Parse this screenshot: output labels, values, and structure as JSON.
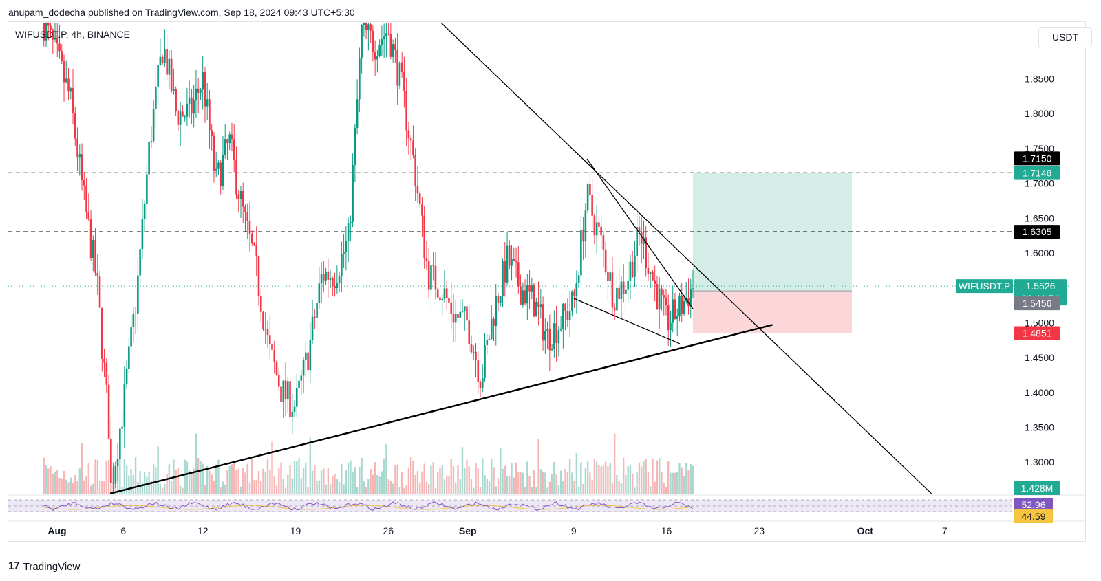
{
  "header": {
    "published_by": "anupam_dodecha published on TradingView.com, Sep 18, 2024 09:43 UTC+5:30"
  },
  "symbol": {
    "label": "WIFUSDT.P, 4h, BINANCE"
  },
  "currency_button": {
    "label": "USDT"
  },
  "footer": {
    "brand": "TradingView",
    "logo_glyph": "17"
  },
  "colors": {
    "up": "#089981",
    "down": "#f23645",
    "volume_up": "#a8d8cf",
    "volume_down": "#f7b6b6",
    "target_zone": "#d4ede6",
    "stop_zone": "#fbd7d9",
    "rsi_line": "#7e57c2",
    "rsi_ma": "#f5c542",
    "rsi_band": "#ede7f6",
    "last_price": "#22ab94",
    "level_black": "#000000"
  },
  "chart_data": {
    "type": "candlestick",
    "timeframe": "4h",
    "exchange": "BINANCE",
    "ylim": [
      1.255,
      1.9305
    ],
    "y_ticks": [
      "1.8500",
      "1.8000",
      "1.7500",
      "1.7000",
      "1.6500",
      "1.6000",
      "1.5000",
      "1.4500",
      "1.4000",
      "1.3500",
      "1.3000"
    ],
    "x_ticks": [
      "Aug",
      "6",
      "12",
      "19",
      "26",
      "Sep",
      "9",
      "16",
      "23",
      "Oct",
      "7"
    ],
    "horizontal_levels": [
      1.715,
      1.6305
    ],
    "price_labels": [
      {
        "text": "1.7150",
        "kind": "level",
        "color": "#000000"
      },
      {
        "text": "1.7148",
        "kind": "target",
        "color": "#22ab94"
      },
      {
        "text": "1.6305",
        "kind": "level",
        "color": "#000000"
      },
      {
        "text": "1.5526",
        "kind": "last",
        "color": "#22ab94"
      },
      {
        "text": "03:46:54",
        "kind": "countdown",
        "color": "#22ab94"
      },
      {
        "text": "1.5456",
        "kind": "entry",
        "color": "#787b86"
      },
      {
        "text": "1.4851",
        "kind": "stop",
        "color": "#f23645"
      }
    ],
    "last_price_tag": "WIFUSDT.P",
    "last_price": 1.5526,
    "volume_label": "1.428M",
    "rsi": {
      "value_label": "52.96",
      "ma_label": "44.59"
    },
    "position": {
      "entry": 1.5456,
      "target": 1.7148,
      "stop": 1.4851
    },
    "trendlines": [
      {
        "name": "ascending-support",
        "from": [
          "Aug 5",
          1.255
        ],
        "to": [
          "Sep 24",
          1.497
        ]
      },
      {
        "name": "descending-resistance",
        "from": [
          "Aug 30",
          1.93
        ],
        "to": [
          "Oct 6",
          1.255
        ]
      },
      {
        "name": "inner-upper",
        "from": [
          "Sep 10",
          1.735
        ],
        "to": [
          "Sep 18",
          1.52
        ]
      },
      {
        "name": "inner-lower",
        "from": [
          "Sep 9",
          1.535
        ],
        "to": [
          "Sep 17",
          1.47
        ]
      }
    ],
    "path_points": [
      [
        "Jul 31",
        1.93
      ],
      [
        "Aug 1",
        1.88
      ],
      [
        "Aug 2",
        1.82
      ],
      [
        "Aug 3",
        1.68
      ],
      [
        "Aug 4",
        1.56
      ],
      [
        "Aug 5",
        1.33
      ],
      [
        "Aug 5",
        1.255
      ],
      [
        "Aug 6",
        1.38
      ],
      [
        "Aug 7",
        1.54
      ],
      [
        "Aug 8",
        1.76
      ],
      [
        "Aug 9",
        1.9
      ],
      [
        "Aug 10",
        1.8
      ],
      [
        "Aug 11",
        1.8
      ],
      [
        "Aug 12",
        1.85
      ],
      [
        "Aug 13",
        1.7
      ],
      [
        "Aug 14",
        1.76
      ],
      [
        "Aug 15",
        1.66
      ],
      [
        "Aug 16",
        1.58
      ],
      [
        "Aug 17",
        1.46
      ],
      [
        "Aug 18",
        1.4
      ],
      [
        "Aug 19",
        1.38
      ],
      [
        "Aug 20",
        1.46
      ],
      [
        "Aug 21",
        1.57
      ],
      [
        "Aug 22",
        1.57
      ],
      [
        "Aug 23",
        1.62
      ],
      [
        "Aug 24",
        1.92
      ],
      [
        "Aug 25",
        1.9
      ],
      [
        "Aug 26",
        1.92
      ],
      [
        "Aug 27",
        1.84
      ],
      [
        "Aug 28",
        1.72
      ],
      [
        "Aug 29",
        1.57
      ],
      [
        "Aug 30",
        1.55
      ],
      [
        "Aug 31",
        1.51
      ],
      [
        "Sep 1",
        1.5
      ],
      [
        "Sep 2",
        1.42
      ],
      [
        "Sep 3",
        1.52
      ],
      [
        "Sep 4",
        1.59
      ],
      [
        "Sep 5",
        1.55
      ],
      [
        "Sep 6",
        1.53
      ],
      [
        "Sep 7",
        1.48
      ],
      [
        "Sep 8",
        1.5
      ],
      [
        "Sep 9",
        1.53
      ],
      [
        "Sep 10",
        1.68
      ],
      [
        "Sep 11",
        1.62
      ],
      [
        "Sep 12",
        1.54
      ],
      [
        "Sep 13",
        1.56
      ],
      [
        "Sep 14",
        1.63
      ],
      [
        "Sep 15",
        1.56
      ],
      [
        "Sep 16",
        1.5
      ],
      [
        "Sep 17",
        1.52
      ],
      [
        "Sep 18",
        1.5526
      ]
    ]
  }
}
